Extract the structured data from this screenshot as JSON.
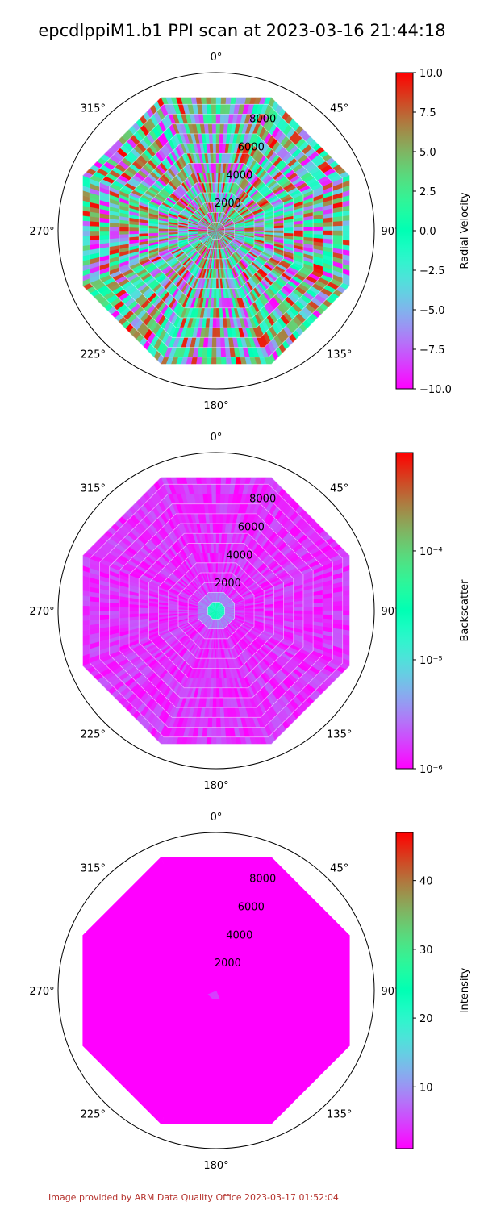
{
  "title": "epcdlppiM1.b1 PPI scan at 2023-03-16 21:44:18",
  "footer": "Image provided by ARM Data Quality Office 2023-03-17 01:52:04",
  "chart_data": [
    {
      "type": "heatmap",
      "projection": "polar",
      "theta_labels": [
        "0°",
        "45°",
        "90°",
        "135°",
        "180°",
        "225°",
        "270°",
        "315°"
      ],
      "radial_ticks": [
        2000,
        4000,
        6000,
        8000
      ],
      "radial_tick_labels": [
        "2000",
        "4000",
        "6000",
        "8000"
      ],
      "rlim": [
        0,
        10400
      ],
      "ring_ranges": [
        600,
        1300,
        2000,
        2700,
        3400,
        4100,
        4800,
        5500,
        6200,
        6900,
        7600,
        8300,
        9000,
        9500
      ],
      "colormap": "rainbow",
      "colorbar_label": "Radial Velocity",
      "colorbar_scale": "linear",
      "clim": [
        -10.0,
        10.0
      ],
      "colorbar_ticks": [
        -10.0,
        -7.5,
        -5.0,
        -2.5,
        0.0,
        2.5,
        5.0,
        7.5,
        10.0
      ],
      "colorbar_tick_labels": [
        "−10.0",
        "−7.5",
        "−5.0",
        "−2.5",
        "0.0",
        "2.5",
        "5.0",
        "7.5",
        "10.0"
      ],
      "color_profile": "mixed",
      "grid": false
    },
    {
      "type": "heatmap",
      "projection": "polar",
      "theta_labels": [
        "0°",
        "45°",
        "90°",
        "135°",
        "180°",
        "225°",
        "270°",
        "315°"
      ],
      "radial_ticks": [
        2000,
        4000,
        6000,
        8000
      ],
      "radial_tick_labels": [
        "2000",
        "4000",
        "6000",
        "8000"
      ],
      "rlim": [
        0,
        10400
      ],
      "ring_ranges": [
        600,
        1300,
        2000,
        2700,
        3400,
        4100,
        4800,
        5500,
        6200,
        6900,
        7600,
        8300,
        9000,
        9500
      ],
      "colormap": "rainbow",
      "colorbar_label": "Backscatter",
      "colorbar_scale": "log",
      "clim": [
        1e-06,
        0.0008
      ],
      "colorbar_ticks": [
        1e-06,
        1e-05,
        0.0001
      ],
      "colorbar_tick_labels": [
        "10⁻⁶",
        "10⁻⁵",
        "10⁻⁴"
      ],
      "color_profile": "low",
      "grid": false
    },
    {
      "type": "heatmap",
      "projection": "polar",
      "theta_labels": [
        "0°",
        "45°",
        "90°",
        "135°",
        "180°",
        "225°",
        "270°",
        "315°"
      ],
      "radial_ticks": [
        2000,
        4000,
        6000,
        8000
      ],
      "radial_tick_labels": [
        "2000",
        "4000",
        "6000",
        "8000"
      ],
      "rlim": [
        0,
        10400
      ],
      "ring_ranges": [
        600,
        1300,
        2000,
        2700,
        3400,
        4100,
        4800,
        5500,
        6200,
        6900,
        7600,
        8300,
        9000,
        9500
      ],
      "colormap": "rainbow",
      "colorbar_label": "Intensity",
      "colorbar_scale": "linear",
      "clim": [
        1.0,
        47.0
      ],
      "colorbar_ticks": [
        10,
        20,
        30,
        40
      ],
      "colorbar_tick_labels": [
        "10",
        "20",
        "30",
        "40"
      ],
      "color_profile": "flat",
      "grid": false
    }
  ]
}
